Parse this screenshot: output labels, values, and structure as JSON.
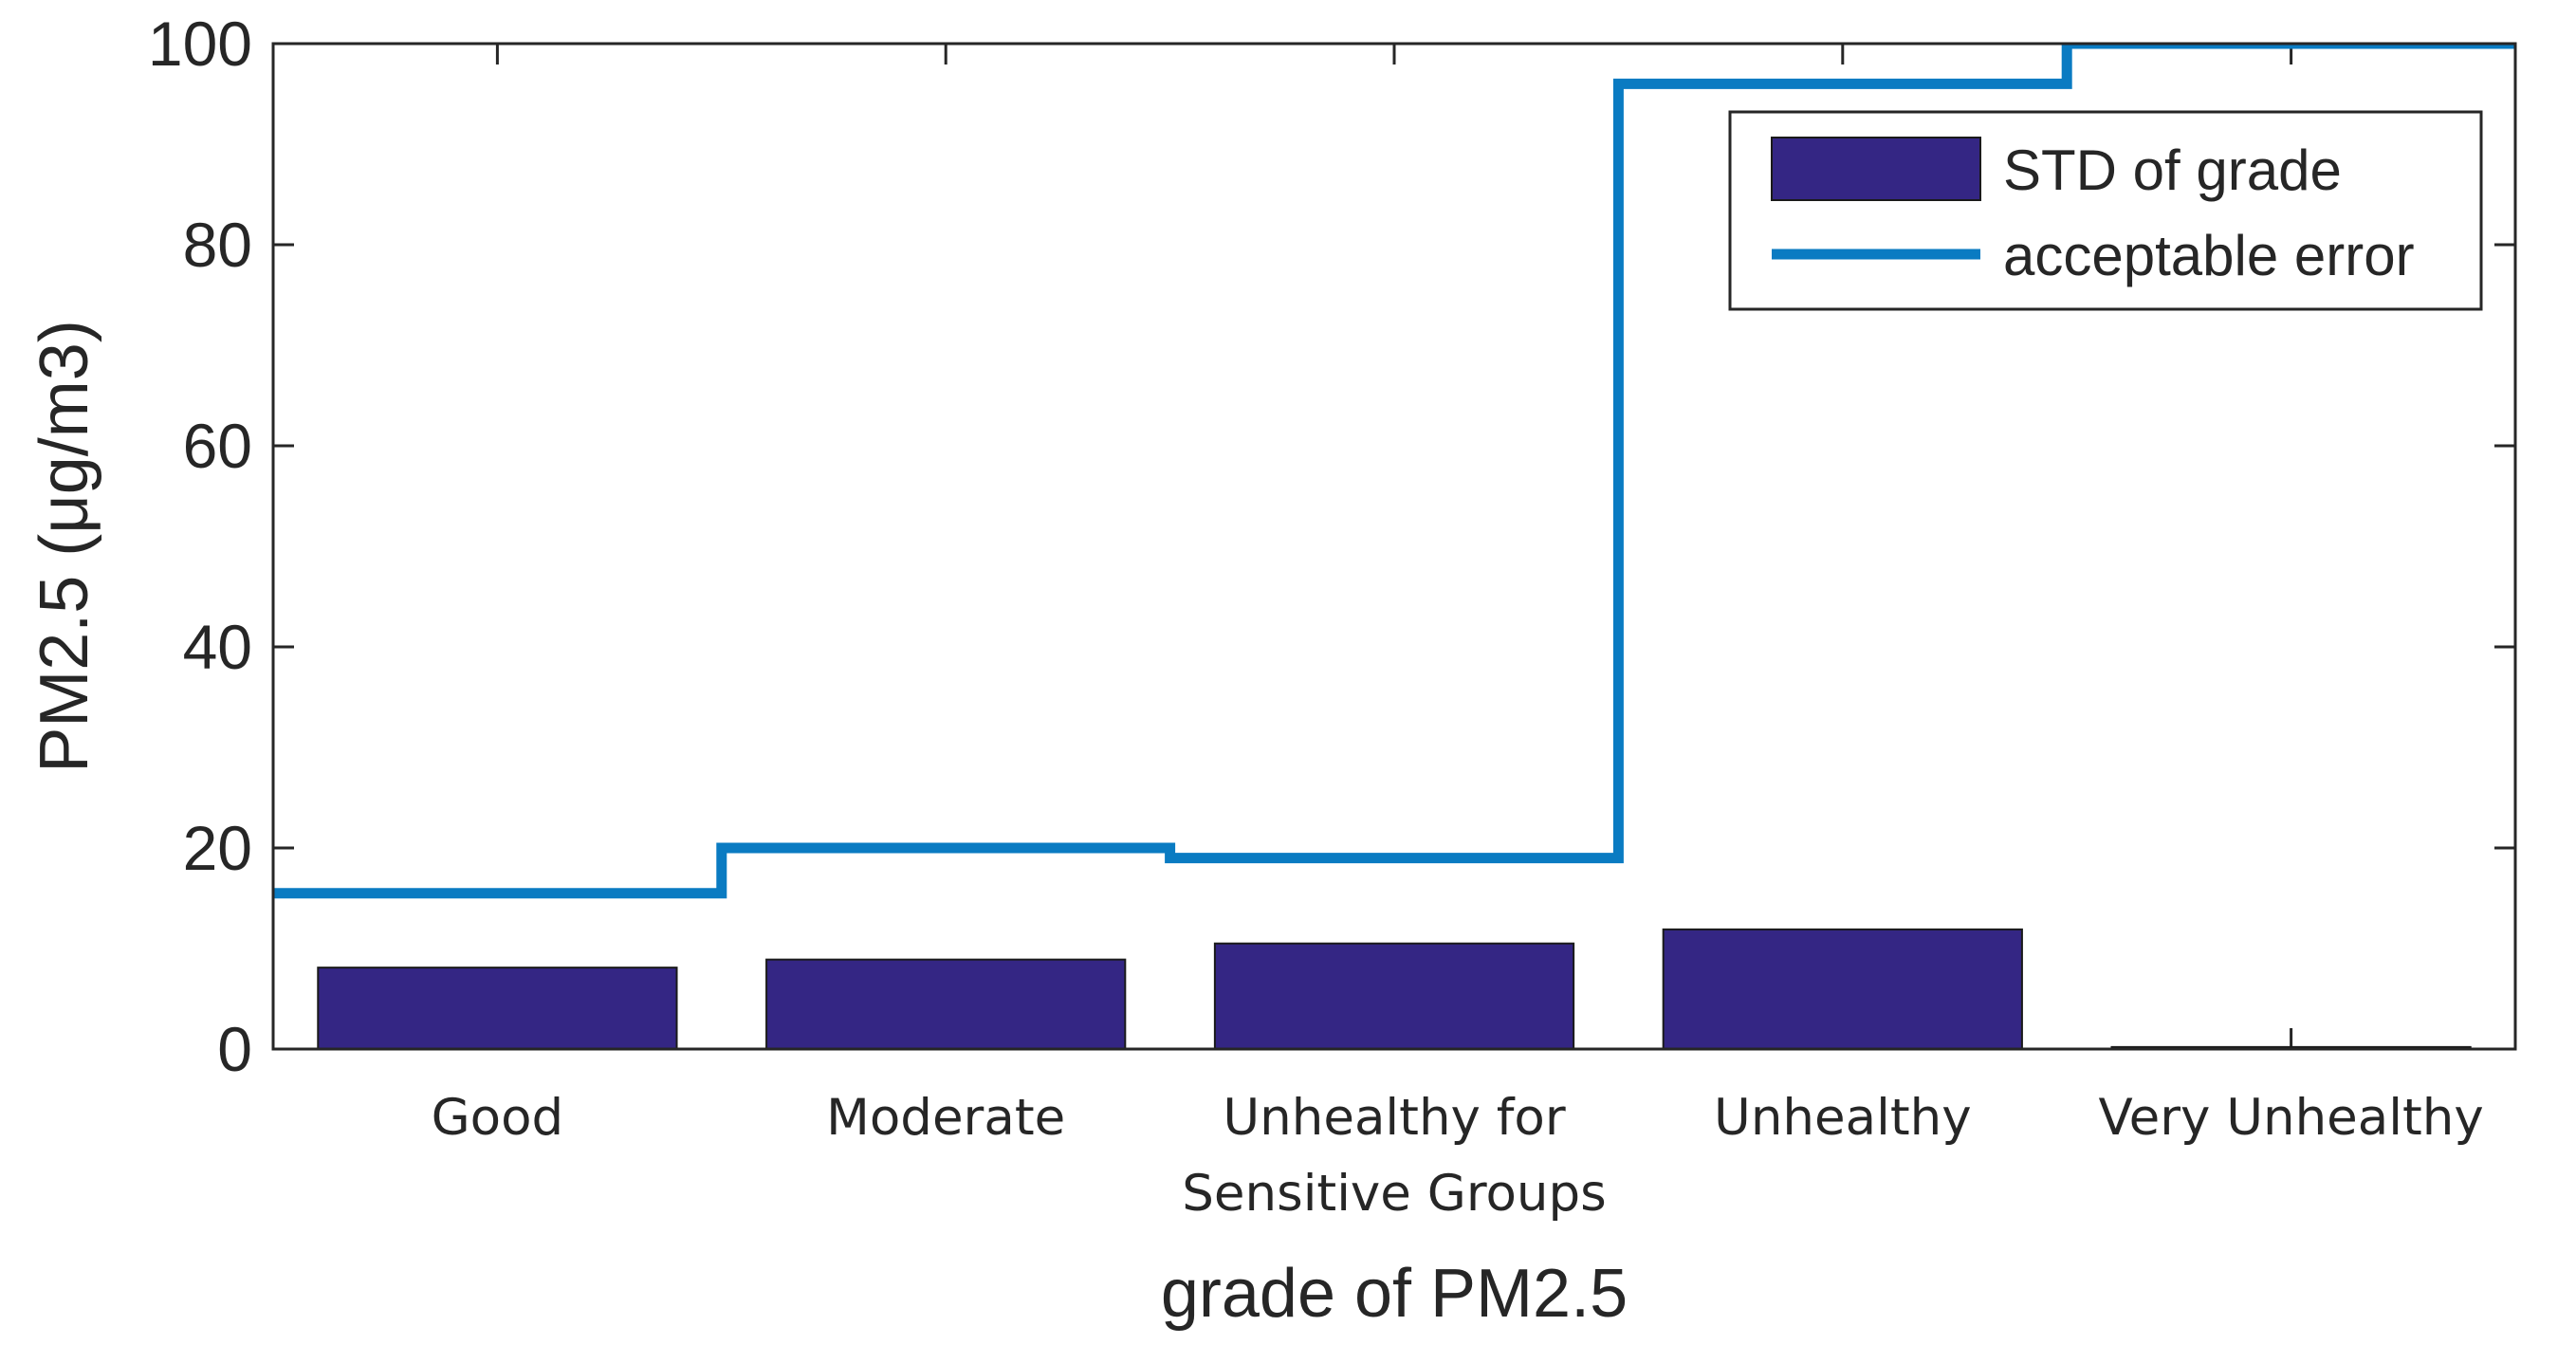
{
  "chart_data": {
    "type": "bar",
    "categories": [
      [
        "Good"
      ],
      [
        "Moderate"
      ],
      [
        "Unhealthy for",
        "Sensitive Groups"
      ],
      [
        "Unhealthy"
      ],
      [
        "Very Unhealthy"
      ]
    ],
    "series": [
      {
        "name": "STD of grade",
        "kind": "bar",
        "values": [
          8.1,
          8.9,
          10.5,
          11.9,
          0.2
        ],
        "color": "#342684"
      },
      {
        "name": "acceptable error",
        "kind": "step-line",
        "values": [
          15.5,
          20,
          19,
          96,
          101
        ],
        "color": "#0a7bc2"
      }
    ],
    "xlabel": "grade of PM2.5",
    "ylabel": "PM2.5 (μg/m3)",
    "ylim": [
      0,
      100
    ],
    "yticks": [
      0,
      20,
      40,
      60,
      80,
      100
    ],
    "legend_position": "top-right",
    "grid": false
  }
}
